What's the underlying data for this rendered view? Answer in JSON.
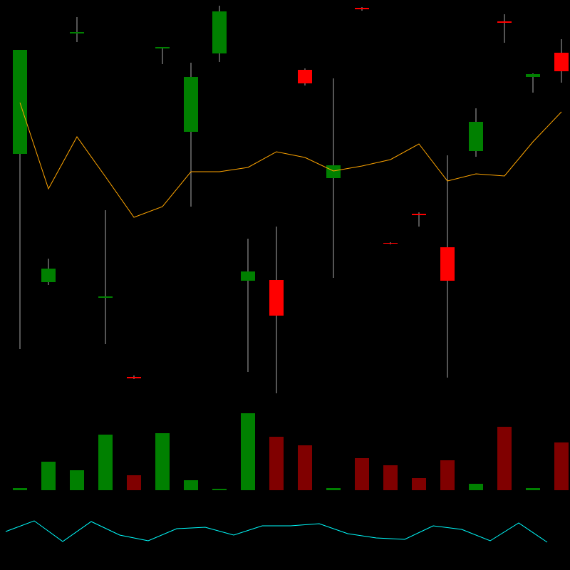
{
  "chart_data": {
    "type": "candlestick",
    "ylim": [
      0,
      800
    ],
    "up_color": "#008000",
    "down_color": "#ff0000",
    "wick_color": "#aaaaaa",
    "open": [
      584,
      404,
      753,
      382,
      271,
      732,
      615,
      725,
      406,
      407,
      702,
      550,
      789,
      459,
      500,
      453,
      588,
      770,
      692,
      726
    ],
    "high": [
      730,
      437,
      776,
      505,
      273,
      734,
      712,
      792,
      465,
      482,
      704,
      690,
      790,
      460,
      502,
      582,
      648,
      780,
      697,
      745
    ],
    "low": [
      310,
      400,
      741,
      317,
      268,
      710,
      510,
      713,
      278,
      248,
      680,
      410,
      785,
      457,
      482,
      270,
      580,
      740,
      670,
      684
    ],
    "close": [
      730,
      423,
      755,
      384,
      269,
      734,
      692,
      784,
      419,
      357,
      683,
      568,
      787,
      458,
      498,
      406,
      629,
      768,
      696,
      700
    ],
    "moving_average": {
      "color": "#ffa500",
      "values": [
        656,
        535,
        608,
        552,
        495,
        510,
        559,
        559,
        565,
        587,
        579,
        560,
        567,
        576,
        598,
        546,
        556,
        553,
        601,
        643
      ]
    },
    "volume": {
      "ylim": [
        0,
        110
      ],
      "up_color": "#008000",
      "down_color": "#800000",
      "values": [
        3,
        40,
        28,
        78,
        21,
        80,
        14,
        2,
        108,
        75,
        63,
        3,
        45,
        35,
        17,
        42,
        9,
        89,
        3,
        67
      ]
    },
    "indicator": {
      "ylim": [
        0,
        800
      ],
      "color": "#00ffff",
      "values": [
        54,
        69,
        40,
        68,
        49,
        41,
        58,
        60,
        49,
        62,
        62,
        65,
        51,
        45,
        43,
        62,
        57,
        41,
        66,
        39
      ]
    }
  }
}
